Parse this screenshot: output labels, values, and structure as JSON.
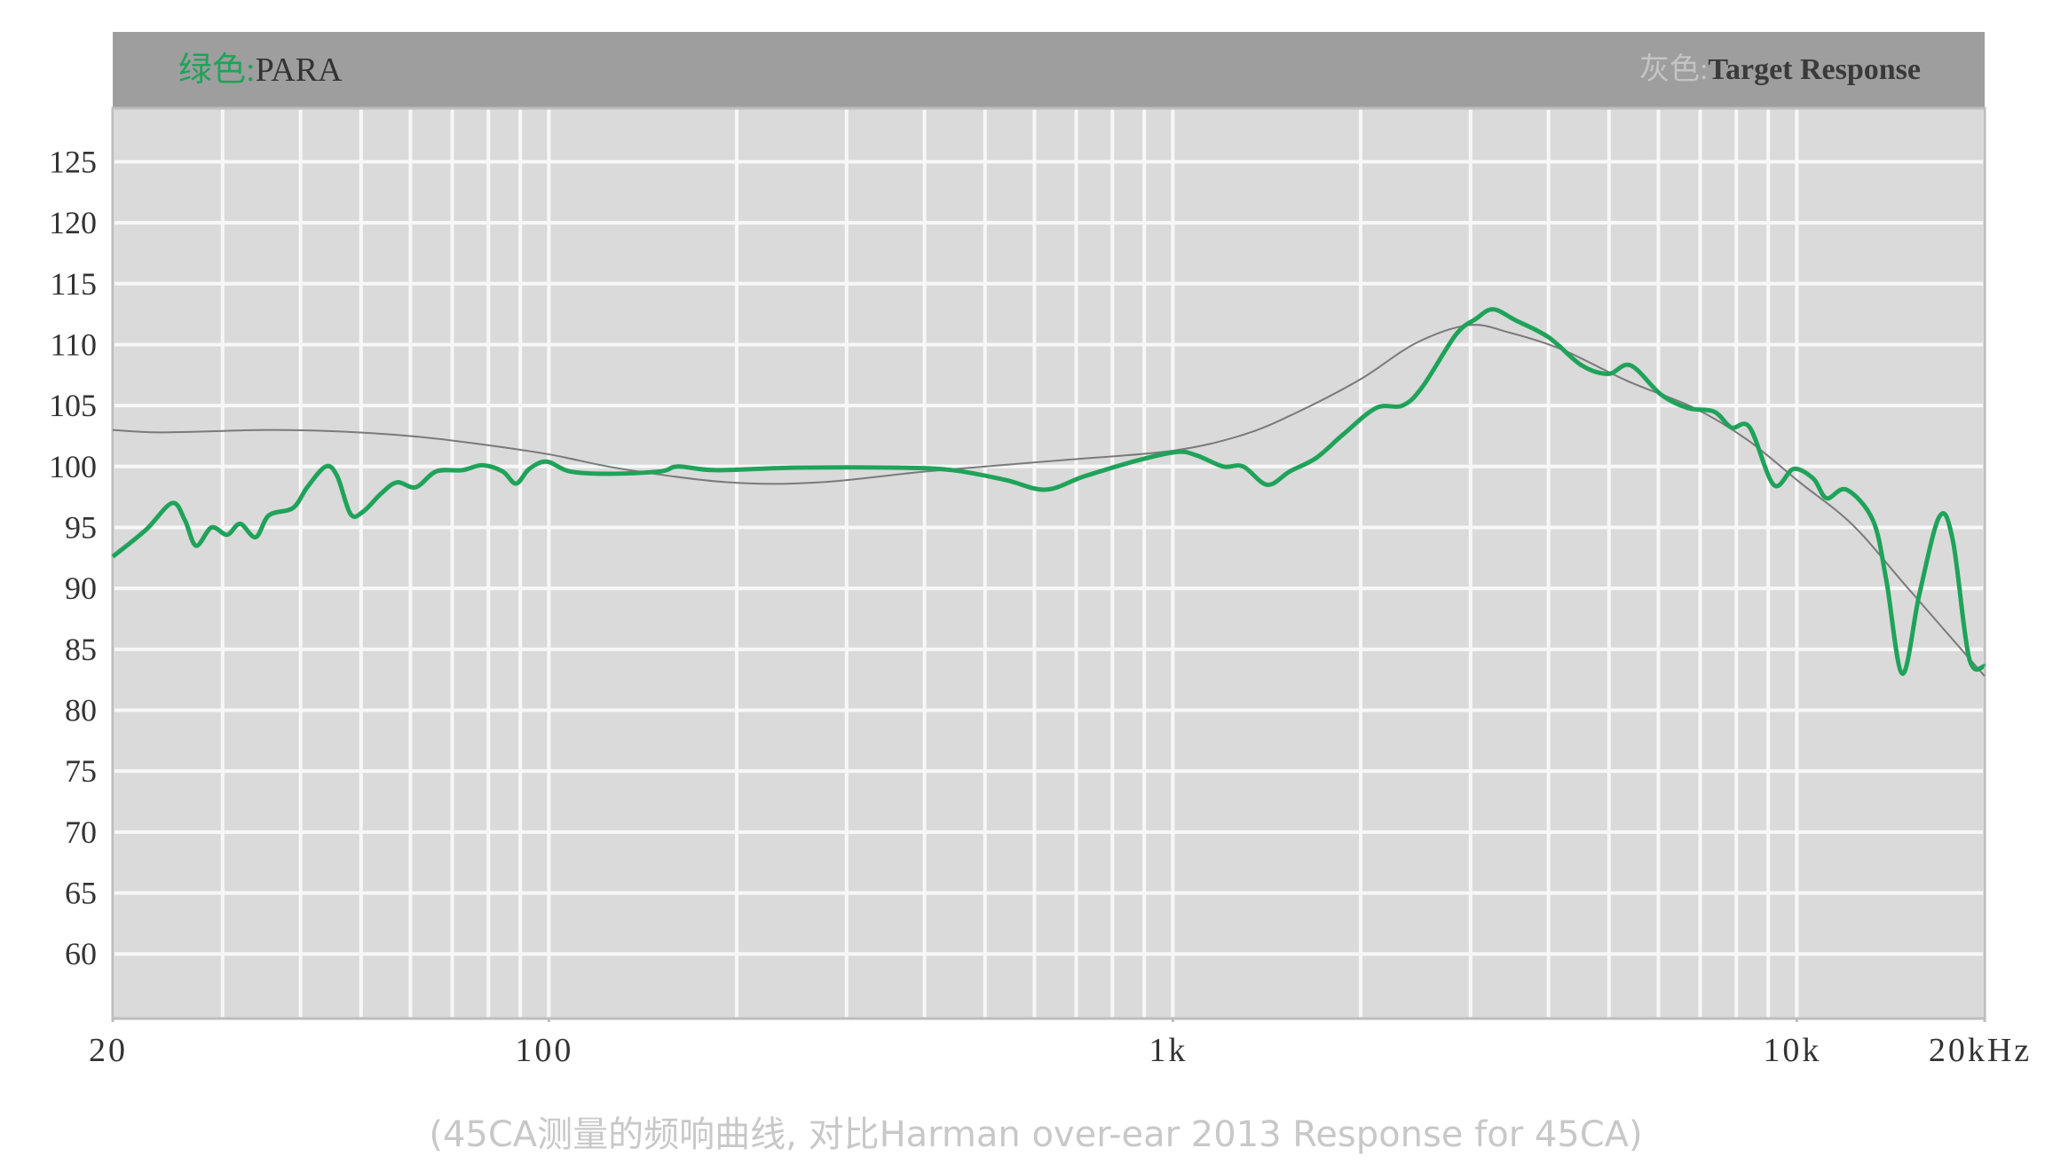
{
  "chart_data": {
    "type": "line",
    "legend_prefixes": [
      "绿色:",
      "灰色:"
    ],
    "caption": "(45CA测量的频响曲线, 对比Harman over-ear 2013 Response for 45CA)",
    "xlog": true,
    "xlim": [
      20,
      20000
    ],
    "xticks": [
      20,
      100,
      {
        "value": 1000,
        "label": "1k"
      },
      {
        "value": 10000,
        "label": "10k"
      },
      {
        "value": 20000,
        "label": "20kHz"
      }
    ],
    "xgrid": [
      20,
      30,
      40,
      50,
      60,
      70,
      80,
      90,
      100,
      200,
      300,
      400,
      500,
      600,
      700,
      800,
      900,
      1000,
      2000,
      3000,
      4000,
      5000,
      6000,
      7000,
      8000,
      9000,
      10000,
      20000
    ],
    "ylim": [
      54.7,
      129.4
    ],
    "yticks": [
      60,
      65,
      70,
      75,
      80,
      85,
      90,
      95,
      100,
      105,
      110,
      115,
      120,
      125
    ],
    "grid": true,
    "series": [
      {
        "name": "PARA",
        "color": "#1fa35a",
        "x": [
          20,
          22.6,
          24.9,
          26.1,
          27.2,
          28.8,
          30.5,
          32,
          33.9,
          35.6,
          38.9,
          41,
          43.9,
          45.8,
          48.1,
          50.4,
          53.9,
          57.1,
          61.2,
          66,
          72.6,
          78.2,
          84.3,
          88.6,
          93,
          99.2,
          108,
          125,
          151,
          161,
          185,
          247,
          364,
          444,
          539,
          625,
          722,
          878,
          1015,
          1093,
          1204,
          1296,
          1417,
          1540,
          1697,
          1872,
          2117,
          2333,
          2509,
          2840,
          3057,
          3259,
          3542,
          4002,
          4520,
          4985,
          5415,
          6058,
          6683,
          7372,
          7851,
          8406,
          9181,
          9881,
          10630,
          11160,
          12010,
          13240,
          13910,
          14760,
          15730,
          16930,
          17790,
          18880,
          20000
        ],
        "values": [
          92.6,
          94.8,
          97.0,
          95.6,
          93.5,
          95.0,
          94.4,
          95.3,
          94.2,
          96.0,
          96.6,
          98.3,
          100.0,
          99.2,
          96.1,
          96.3,
          97.8,
          98.7,
          98.3,
          99.6,
          99.7,
          100.1,
          99.6,
          98.6,
          99.8,
          100.4,
          99.6,
          99.4,
          99.6,
          100.0,
          99.7,
          99.9,
          99.9,
          99.7,
          98.9,
          98.1,
          99.2,
          100.5,
          101.2,
          100.9,
          100.0,
          100.0,
          98.5,
          99.6,
          100.7,
          102.6,
          104.8,
          105.0,
          106.5,
          110.8,
          112.1,
          112.9,
          112.0,
          110.6,
          108.3,
          107.6,
          108.3,
          105.9,
          104.8,
          104.5,
          103.2,
          103.2,
          98.5,
          99.8,
          99.0,
          97.4,
          98.1,
          95.6,
          90.7,
          83.0,
          89.6,
          95.9,
          93.9,
          84.3,
          83.6
        ]
      },
      {
        "name": "Target Response",
        "color": "#7a7a7a",
        "x": [
          20,
          23.9,
          35.1,
          44.9,
          60,
          76,
          100,
          131,
          194,
          272,
          404,
          658,
          1000,
          1296,
          1575,
          2005,
          2446,
          2980,
          3457,
          4204,
          5363,
          6850,
          8325,
          10110,
          12290,
          14960,
          20000
        ],
        "values": [
          103.0,
          102.8,
          103.0,
          102.9,
          102.5,
          101.9,
          101.0,
          99.8,
          98.7,
          98.7,
          99.6,
          100.5,
          101.3,
          102.6,
          104.4,
          107.2,
          110.1,
          111.6,
          111.0,
          109.6,
          107.0,
          104.8,
          102.2,
          98.7,
          95.2,
          90.2,
          82.8
        ]
      }
    ]
  }
}
